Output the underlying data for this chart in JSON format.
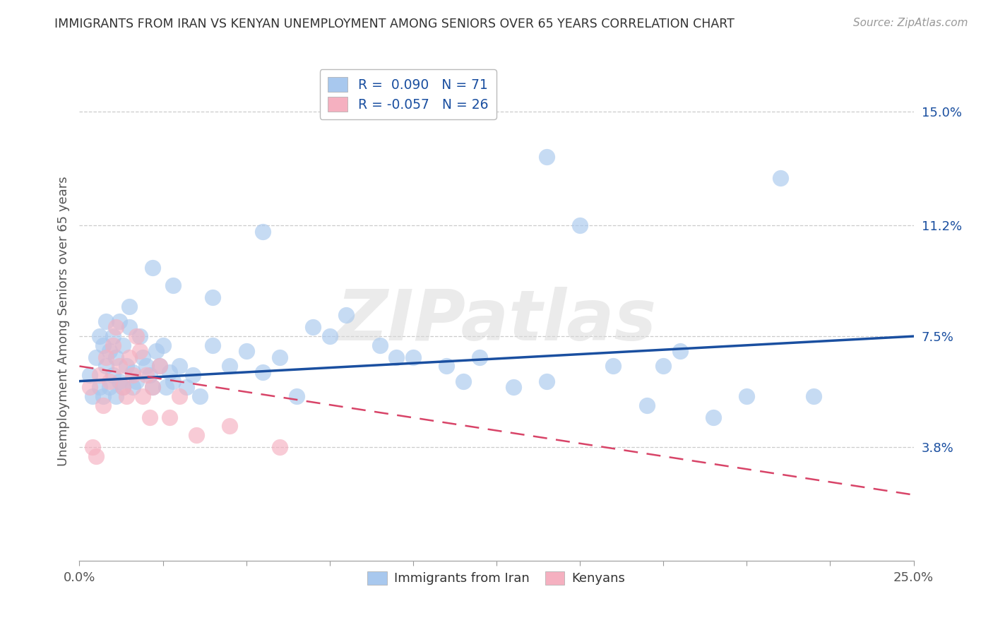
{
  "title": "IMMIGRANTS FROM IRAN VS KENYAN UNEMPLOYMENT AMONG SENIORS OVER 65 YEARS CORRELATION CHART",
  "source": "Source: ZipAtlas.com",
  "ylabel": "Unemployment Among Seniors over 65 years",
  "xlim": [
    0.0,
    0.25
  ],
  "ylim": [
    0.0,
    0.16
  ],
  "xticks": [
    0.0,
    0.025,
    0.05,
    0.075,
    0.1,
    0.125,
    0.15,
    0.175,
    0.2,
    0.225,
    0.25
  ],
  "right_yticks": [
    0.038,
    0.075,
    0.112,
    0.15
  ],
  "right_ytick_labels": [
    "3.8%",
    "7.5%",
    "11.2%",
    "15.0%"
  ],
  "legend_blue_r": "0.090",
  "legend_blue_n": "71",
  "legend_pink_r": "-0.057",
  "legend_pink_n": "26",
  "legend_label_blue": "Immigrants from Iran",
  "legend_label_pink": "Kenyans",
  "blue_color": "#A8C8EE",
  "pink_color": "#F5B0C0",
  "blue_line_color": "#1A4FA0",
  "pink_line_color": "#D84468",
  "watermark_color": "#D8D8D8",
  "blue_trend_x": [
    0.0,
    0.25
  ],
  "blue_trend_y": [
    0.06,
    0.075
  ],
  "pink_trend_x": [
    0.0,
    0.25
  ],
  "pink_trend_y": [
    0.065,
    0.022
  ],
  "blue_x": [
    0.003,
    0.004,
    0.005,
    0.006,
    0.006,
    0.007,
    0.007,
    0.008,
    0.008,
    0.009,
    0.009,
    0.01,
    0.01,
    0.011,
    0.011,
    0.012,
    0.012,
    0.013,
    0.013,
    0.014,
    0.015,
    0.015,
    0.016,
    0.016,
    0.017,
    0.018,
    0.019,
    0.02,
    0.021,
    0.022,
    0.023,
    0.024,
    0.025,
    0.026,
    0.027,
    0.028,
    0.03,
    0.032,
    0.034,
    0.036,
    0.04,
    0.045,
    0.05,
    0.055,
    0.06,
    0.065,
    0.07,
    0.08,
    0.09,
    0.1,
    0.11,
    0.12,
    0.13,
    0.14,
    0.15,
    0.16,
    0.17,
    0.18,
    0.19,
    0.2,
    0.022,
    0.028,
    0.04,
    0.055,
    0.075,
    0.095,
    0.115,
    0.14,
    0.175,
    0.21,
    0.22
  ],
  "blue_y": [
    0.062,
    0.055,
    0.068,
    0.075,
    0.058,
    0.072,
    0.055,
    0.065,
    0.08,
    0.07,
    0.058,
    0.075,
    0.062,
    0.068,
    0.055,
    0.06,
    0.08,
    0.072,
    0.058,
    0.065,
    0.085,
    0.078,
    0.063,
    0.058,
    0.06,
    0.075,
    0.068,
    0.065,
    0.062,
    0.058,
    0.07,
    0.065,
    0.072,
    0.058,
    0.063,
    0.06,
    0.065,
    0.058,
    0.062,
    0.055,
    0.072,
    0.065,
    0.07,
    0.063,
    0.068,
    0.055,
    0.078,
    0.082,
    0.072,
    0.068,
    0.065,
    0.068,
    0.058,
    0.06,
    0.112,
    0.065,
    0.052,
    0.07,
    0.048,
    0.055,
    0.098,
    0.092,
    0.088,
    0.11,
    0.075,
    0.068,
    0.06,
    0.135,
    0.065,
    0.128,
    0.055
  ],
  "pink_x": [
    0.003,
    0.004,
    0.005,
    0.006,
    0.007,
    0.008,
    0.009,
    0.01,
    0.011,
    0.012,
    0.013,
    0.014,
    0.015,
    0.016,
    0.017,
    0.018,
    0.019,
    0.02,
    0.021,
    0.022,
    0.024,
    0.027,
    0.03,
    0.035,
    0.045,
    0.06
  ],
  "pink_y": [
    0.058,
    0.038,
    0.035,
    0.062,
    0.052,
    0.068,
    0.06,
    0.072,
    0.078,
    0.065,
    0.058,
    0.055,
    0.068,
    0.062,
    0.075,
    0.07,
    0.055,
    0.062,
    0.048,
    0.058,
    0.065,
    0.048,
    0.055,
    0.042,
    0.045,
    0.038
  ]
}
